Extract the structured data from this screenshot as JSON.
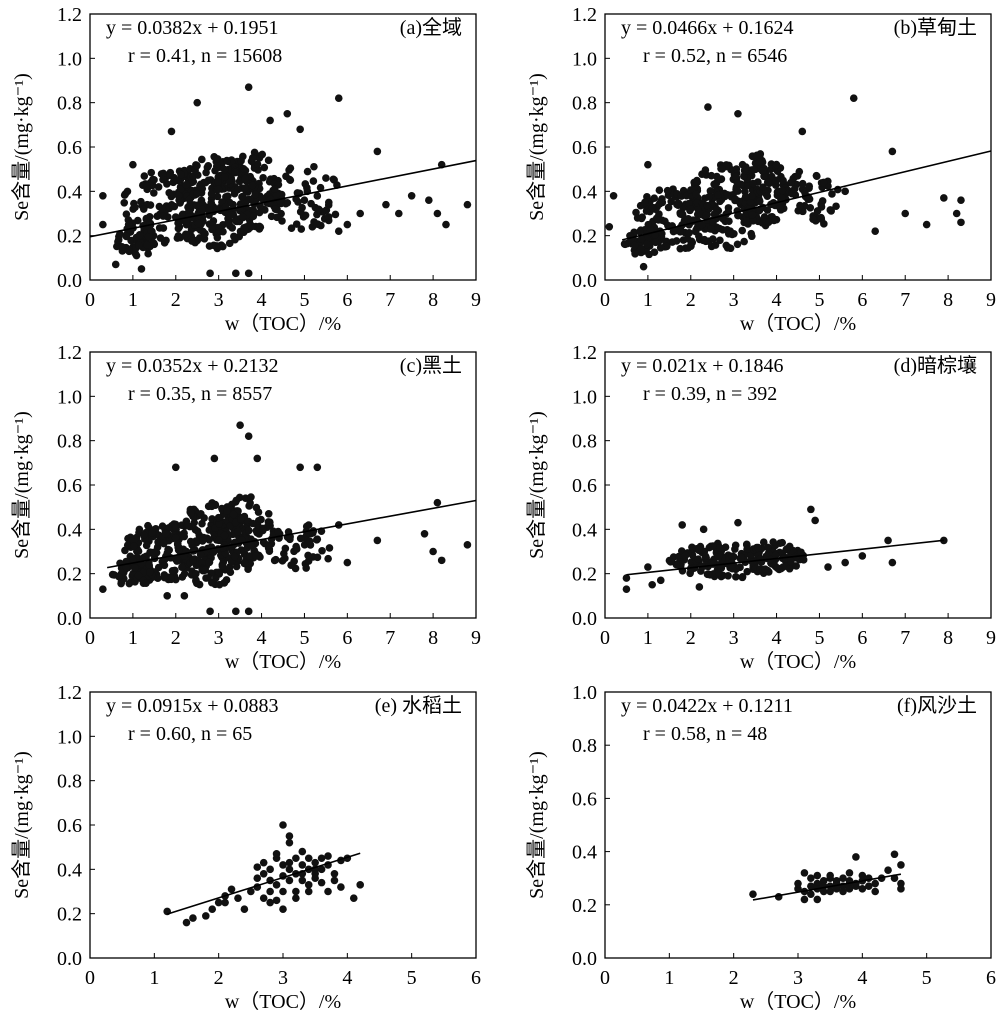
{
  "chart_data": [
    {
      "type": "scatter",
      "panel_label": "(a)全域",
      "equation": "y = 0.0382x + 0.1951",
      "stats": "r = 0.41, n = 15608",
      "slope": 0.0382,
      "intercept": 0.1951,
      "xlabel": "w（TOC）/%",
      "ylabel": "Se含量/(mg·kg⁻¹)",
      "xlim": [
        0,
        9
      ],
      "ylim": [
        0,
        1.2
      ],
      "xticks": [
        "0",
        "1",
        "2",
        "3",
        "4",
        "5",
        "6",
        "7",
        "8",
        "9"
      ],
      "yticks": [
        "0.0",
        "0.2",
        "0.4",
        "0.6",
        "0.8",
        "1.0",
        "1.2"
      ],
      "points": [
        [
          3.7,
          0.87
        ],
        [
          3.7,
          0.03
        ],
        [
          3.4,
          0.03
        ],
        [
          2.8,
          0.03
        ],
        [
          2.5,
          0.8
        ],
        [
          5.8,
          0.82
        ],
        [
          4.6,
          0.75
        ],
        [
          1.0,
          0.52
        ],
        [
          1.9,
          0.67
        ],
        [
          6.7,
          0.58
        ],
        [
          7.5,
          0.38
        ],
        [
          7.9,
          0.36
        ],
        [
          8.1,
          0.3
        ],
        [
          8.3,
          0.25
        ],
        [
          8.8,
          0.34
        ],
        [
          8.2,
          0.52
        ],
        [
          6.3,
          0.3
        ],
        [
          6.0,
          0.25
        ],
        [
          0.3,
          0.25
        ],
        [
          0.3,
          0.38
        ],
        [
          0.6,
          0.07
        ],
        [
          1.2,
          0.05
        ],
        [
          4.9,
          0.68
        ],
        [
          4.2,
          0.72
        ],
        [
          0.9,
          0.25
        ],
        [
          1.6,
          0.42
        ],
        [
          5.5,
          0.46
        ],
        [
          6.9,
          0.34
        ],
        [
          7.2,
          0.3
        ],
        [
          5.8,
          0.22
        ]
      ],
      "clouds": [
        {
          "cx": 1.9,
          "cy": 0.33,
          "rx": 1.15,
          "ry": 0.17,
          "n": 150
        },
        {
          "cx": 2.9,
          "cy": 0.35,
          "rx": 1.0,
          "ry": 0.21,
          "n": 170
        },
        {
          "cx": 3.7,
          "cy": 0.4,
          "rx": 0.75,
          "ry": 0.19,
          "n": 140
        },
        {
          "cx": 5.0,
          "cy": 0.37,
          "rx": 0.85,
          "ry": 0.15,
          "n": 60
        },
        {
          "cx": 1.1,
          "cy": 0.18,
          "rx": 0.55,
          "ry": 0.07,
          "n": 60
        }
      ]
    },
    {
      "type": "scatter",
      "panel_label": "(b)草甸土",
      "equation": "y = 0.0466x + 0.1624",
      "stats": "r = 0.52, n = 6546",
      "slope": 0.0466,
      "intercept": 0.1624,
      "xlabel": "w（TOC）/%",
      "ylabel": "Se含量/(mg·kg⁻¹)",
      "xlim": [
        0,
        9
      ],
      "ylim": [
        0,
        1.2
      ],
      "xticks": [
        "0",
        "1",
        "2",
        "3",
        "4",
        "5",
        "6",
        "7",
        "8",
        "9"
      ],
      "yticks": [
        "0.0",
        "0.2",
        "0.4",
        "0.6",
        "0.8",
        "1.0",
        "1.2"
      ],
      "points": [
        [
          5.8,
          0.82
        ],
        [
          2.4,
          0.78
        ],
        [
          3.1,
          0.75
        ],
        [
          4.6,
          0.67
        ],
        [
          1.0,
          0.52
        ],
        [
          6.7,
          0.58
        ],
        [
          7.9,
          0.37
        ],
        [
          8.2,
          0.3
        ],
        [
          8.3,
          0.26
        ],
        [
          8.3,
          0.36
        ],
        [
          7.5,
          0.25
        ],
        [
          7.0,
          0.3
        ],
        [
          6.3,
          0.22
        ],
        [
          0.1,
          0.24
        ],
        [
          0.2,
          0.38
        ],
        [
          0.9,
          0.06
        ],
        [
          5.1,
          0.44
        ],
        [
          5.6,
          0.4
        ]
      ],
      "clouds": [
        {
          "cx": 1.7,
          "cy": 0.28,
          "rx": 1.0,
          "ry": 0.14,
          "n": 130
        },
        {
          "cx": 2.8,
          "cy": 0.33,
          "rx": 0.95,
          "ry": 0.19,
          "n": 160
        },
        {
          "cx": 3.6,
          "cy": 0.4,
          "rx": 0.65,
          "ry": 0.17,
          "n": 120
        },
        {
          "cx": 4.8,
          "cy": 0.37,
          "rx": 0.7,
          "ry": 0.13,
          "n": 50
        },
        {
          "cx": 0.9,
          "cy": 0.17,
          "rx": 0.45,
          "ry": 0.06,
          "n": 50
        }
      ]
    },
    {
      "type": "scatter",
      "panel_label": "(c)黑土",
      "equation": "y = 0.0352x + 0.2132",
      "stats": "r = 0.35, n = 8557",
      "slope": 0.0352,
      "intercept": 0.2132,
      "xlabel": "w（TOC）/%",
      "ylabel": "Se含量/(mg·kg⁻¹)",
      "xlim": [
        0,
        9
      ],
      "ylim": [
        0,
        1.2
      ],
      "xticks": [
        "0",
        "1",
        "2",
        "3",
        "4",
        "5",
        "6",
        "7",
        "8",
        "9"
      ],
      "yticks": [
        "0.0",
        "0.2",
        "0.4",
        "0.6",
        "0.8",
        "1.0",
        "1.2"
      ],
      "points": [
        [
          3.5,
          0.87
        ],
        [
          3.7,
          0.82
        ],
        [
          3.9,
          0.72
        ],
        [
          2.9,
          0.72
        ],
        [
          2.0,
          0.68
        ],
        [
          4.9,
          0.68
        ],
        [
          5.3,
          0.68
        ],
        [
          8.1,
          0.52
        ],
        [
          8.8,
          0.33
        ],
        [
          7.8,
          0.38
        ],
        [
          8.0,
          0.3
        ],
        [
          8.2,
          0.26
        ],
        [
          6.0,
          0.25
        ],
        [
          6.7,
          0.35
        ],
        [
          5.8,
          0.42
        ],
        [
          3.4,
          0.03
        ],
        [
          3.7,
          0.03
        ],
        [
          2.8,
          0.03
        ],
        [
          1.8,
          0.1
        ],
        [
          2.2,
          0.1
        ],
        [
          0.3,
          0.13
        ]
      ],
      "clouds": [
        {
          "cx": 1.8,
          "cy": 0.3,
          "rx": 1.05,
          "ry": 0.13,
          "n": 140
        },
        {
          "cx": 2.8,
          "cy": 0.33,
          "rx": 0.9,
          "ry": 0.19,
          "n": 160
        },
        {
          "cx": 3.6,
          "cy": 0.38,
          "rx": 0.7,
          "ry": 0.17,
          "n": 120
        },
        {
          "cx": 4.9,
          "cy": 0.32,
          "rx": 0.75,
          "ry": 0.11,
          "n": 50
        },
        {
          "cx": 1.0,
          "cy": 0.2,
          "rx": 0.5,
          "ry": 0.06,
          "n": 50
        }
      ]
    },
    {
      "type": "scatter",
      "panel_label": "(d)暗棕壤",
      "equation": "y = 0.021x + 0.1846",
      "stats": "r = 0.39, n = 392",
      "slope": 0.021,
      "intercept": 0.1846,
      "xlabel": "w（TOC）/%",
      "ylabel": "Se含量/(mg·kg⁻¹)",
      "xlim": [
        0,
        9
      ],
      "ylim": [
        0,
        1.2
      ],
      "xticks": [
        "0",
        "1",
        "2",
        "3",
        "4",
        "5",
        "6",
        "7",
        "8",
        "9"
      ],
      "yticks": [
        "0.0",
        "0.2",
        "0.4",
        "0.6",
        "0.8",
        "1.0",
        "1.2"
      ],
      "points": [
        [
          4.8,
          0.49
        ],
        [
          4.9,
          0.44
        ],
        [
          3.1,
          0.43
        ],
        [
          1.8,
          0.42
        ],
        [
          2.3,
          0.4
        ],
        [
          7.9,
          0.35
        ],
        [
          6.6,
          0.35
        ],
        [
          6.0,
          0.28
        ],
        [
          6.7,
          0.25
        ],
        [
          5.6,
          0.25
        ],
        [
          5.2,
          0.23
        ],
        [
          0.5,
          0.13
        ],
        [
          0.5,
          0.18
        ],
        [
          1.0,
          0.23
        ],
        [
          1.3,
          0.17
        ],
        [
          1.1,
          0.15
        ],
        [
          2.2,
          0.14
        ]
      ],
      "clouds": [
        {
          "cx": 2.9,
          "cy": 0.26,
          "rx": 1.4,
          "ry": 0.08,
          "n": 150
        },
        {
          "cx": 3.9,
          "cy": 0.28,
          "rx": 0.8,
          "ry": 0.07,
          "n": 50
        }
      ]
    },
    {
      "type": "scatter",
      "panel_label": "(e) 水稻土",
      "equation": "y = 0.0915x + 0.0883",
      "stats": "r = 0.60, n = 65",
      "slope": 0.0915,
      "intercept": 0.0883,
      "xlabel": "w（TOC）/%",
      "ylabel": "Se含量/(mg·kg⁻¹)",
      "xlim": [
        0,
        6
      ],
      "ylim": [
        0,
        1.2
      ],
      "xticks": [
        "0",
        "1",
        "2",
        "3",
        "4",
        "5",
        "6"
      ],
      "yticks": [
        "0.0",
        "0.2",
        "0.4",
        "0.6",
        "0.8",
        "1.0",
        "1.2"
      ],
      "points": [
        [
          1.2,
          0.21
        ],
        [
          1.5,
          0.16
        ],
        [
          1.6,
          0.18
        ],
        [
          1.8,
          0.19
        ],
        [
          1.9,
          0.22
        ],
        [
          2.0,
          0.25
        ],
        [
          2.1,
          0.28
        ],
        [
          2.2,
          0.31
        ],
        [
          2.1,
          0.25
        ],
        [
          2.3,
          0.27
        ],
        [
          2.4,
          0.22
        ],
        [
          2.5,
          0.3
        ],
        [
          2.6,
          0.32
        ],
        [
          2.6,
          0.36
        ],
        [
          2.7,
          0.38
        ],
        [
          2.7,
          0.43
        ],
        [
          2.8,
          0.3
        ],
        [
          2.8,
          0.35
        ],
        [
          2.8,
          0.4
        ],
        [
          2.9,
          0.33
        ],
        [
          2.9,
          0.45
        ],
        [
          2.9,
          0.47
        ],
        [
          3.0,
          0.6
        ],
        [
          3.0,
          0.37
        ],
        [
          3.0,
          0.42
        ],
        [
          3.0,
          0.3
        ],
        [
          3.1,
          0.52
        ],
        [
          3.1,
          0.55
        ],
        [
          3.1,
          0.35
        ],
        [
          3.1,
          0.4
        ],
        [
          3.2,
          0.45
        ],
        [
          3.2,
          0.38
        ],
        [
          3.2,
          0.3
        ],
        [
          3.3,
          0.42
        ],
        [
          3.3,
          0.35
        ],
        [
          3.3,
          0.48
        ],
        [
          3.4,
          0.4
        ],
        [
          3.4,
          0.33
        ],
        [
          3.4,
          0.45
        ],
        [
          3.5,
          0.38
        ],
        [
          3.5,
          0.43
        ],
        [
          3.5,
          0.36
        ],
        [
          3.6,
          0.4
        ],
        [
          3.6,
          0.34
        ],
        [
          3.6,
          0.45
        ],
        [
          3.7,
          0.3
        ],
        [
          3.7,
          0.42
        ],
        [
          3.8,
          0.38
        ],
        [
          3.8,
          0.35
        ],
        [
          3.9,
          0.44
        ],
        [
          3.9,
          0.32
        ],
        [
          4.0,
          0.45
        ],
        [
          4.1,
          0.27
        ],
        [
          4.2,
          0.33
        ],
        [
          2.7,
          0.27
        ],
        [
          2.9,
          0.26
        ],
        [
          3.2,
          0.27
        ],
        [
          3.0,
          0.22
        ],
        [
          2.8,
          0.25
        ],
        [
          3.3,
          0.38
        ],
        [
          3.5,
          0.4
        ],
        [
          3.4,
          0.3
        ],
        [
          2.6,
          0.41
        ],
        [
          3.7,
          0.46
        ],
        [
          3.1,
          0.43
        ]
      ]
    },
    {
      "type": "scatter",
      "panel_label": "(f)风沙土",
      "equation": "y = 0.0422x + 0.1211",
      "stats": "r = 0.58, n = 48",
      "slope": 0.0422,
      "intercept": 0.1211,
      "xlabel": "w（TOC）/%",
      "ylabel": "Se含量/(mg·kg⁻¹)",
      "xlim": [
        0,
        6
      ],
      "ylim": [
        0,
        1.0
      ],
      "xticks": [
        "0",
        "1",
        "2",
        "3",
        "4",
        "5",
        "6"
      ],
      "yticks": [
        "0.0",
        "0.2",
        "0.4",
        "0.6",
        "0.8",
        "1.0"
      ],
      "points": [
        [
          2.3,
          0.24
        ],
        [
          2.7,
          0.23
        ],
        [
          3.0,
          0.26
        ],
        [
          3.0,
          0.28
        ],
        [
          3.1,
          0.32
        ],
        [
          3.1,
          0.25
        ],
        [
          3.1,
          0.22
        ],
        [
          3.2,
          0.27
        ],
        [
          3.2,
          0.24
        ],
        [
          3.3,
          0.28
        ],
        [
          3.3,
          0.26
        ],
        [
          3.3,
          0.22
        ],
        [
          3.4,
          0.29
        ],
        [
          3.4,
          0.27
        ],
        [
          3.4,
          0.25
        ],
        [
          3.5,
          0.3
        ],
        [
          3.5,
          0.27
        ],
        [
          3.5,
          0.25
        ],
        [
          3.6,
          0.28
        ],
        [
          3.6,
          0.26
        ],
        [
          3.6,
          0.29
        ],
        [
          3.7,
          0.27
        ],
        [
          3.7,
          0.3
        ],
        [
          3.7,
          0.25
        ],
        [
          3.8,
          0.28
        ],
        [
          3.8,
          0.26
        ],
        [
          3.8,
          0.29
        ],
        [
          3.9,
          0.27
        ],
        [
          3.9,
          0.38
        ],
        [
          3.9,
          0.28
        ],
        [
          4.0,
          0.29
        ],
        [
          4.0,
          0.26
        ],
        [
          4.1,
          0.27
        ],
        [
          4.1,
          0.3
        ],
        [
          4.2,
          0.28
        ],
        [
          4.2,
          0.25
        ],
        [
          4.3,
          0.3
        ],
        [
          4.4,
          0.33
        ],
        [
          4.5,
          0.39
        ],
        [
          4.5,
          0.3
        ],
        [
          4.6,
          0.35
        ],
        [
          4.6,
          0.28
        ],
        [
          4.6,
          0.26
        ],
        [
          3.3,
          0.31
        ],
        [
          3.5,
          0.31
        ],
        [
          3.8,
          0.32
        ],
        [
          3.2,
          0.3
        ],
        [
          4.0,
          0.31
        ]
      ]
    }
  ]
}
